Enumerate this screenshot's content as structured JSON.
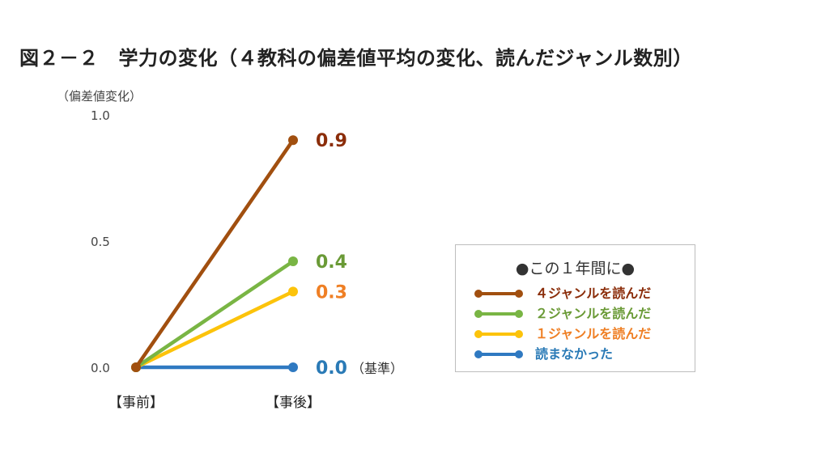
{
  "title": "図２－２　学力の変化（４教科の偏差値平均の変化、読んだジャンル数別）",
  "chart_data": {
    "type": "line",
    "title": "図２－２　学力の変化（４教科の偏差値平均の変化、読んだジャンル数別）",
    "ylabel": "（偏差値変化）",
    "xlabel": "",
    "ylim": [
      0,
      1.0
    ],
    "yticks": [
      "0.0",
      "0.5",
      "1.0"
    ],
    "yticks_values": [
      0,
      0.5,
      1.0
    ],
    "categories": [
      "【事前】",
      "【事後】"
    ],
    "grid": false,
    "legend_position": "right",
    "legend_title": "●この１年間に●",
    "baseline_note": "（基準）",
    "series": [
      {
        "name": "４ジャンルを読んだ",
        "values": [
          0,
          0.9
        ],
        "end_label": "0.9",
        "color": "#a14f0f",
        "label_color": "#8b2d0a"
      },
      {
        "name": "２ジャンルを読んだ",
        "values": [
          0,
          0.42
        ],
        "end_label": "0.4",
        "color": "#79b544",
        "label_color": "#6a9a36"
      },
      {
        "name": "１ジャンルを読んだ",
        "values": [
          0,
          0.3
        ],
        "end_label": "0.3",
        "color": "#fcc30b",
        "label_color": "#ef7f24"
      },
      {
        "name": "読まなかった",
        "values": [
          0,
          0.0
        ],
        "end_label": "0.0",
        "color": "#2f79c1",
        "label_color": "#2a7ab6"
      }
    ]
  }
}
